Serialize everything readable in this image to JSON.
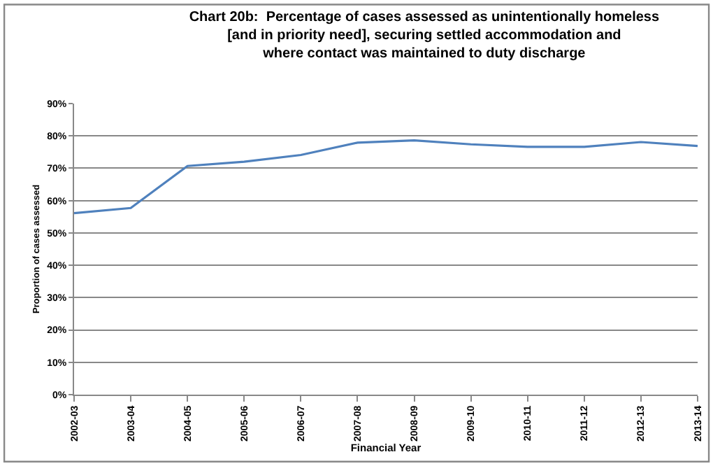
{
  "chart_data": {
    "type": "line",
    "title": "Chart 20b:  Percentage of cases assessed as unintentionally homeless\n[and in priority need], securing settled accommodation and\nwhere contact was maintained to duty discharge",
    "xlabel": "Financial Year",
    "ylabel": "Proportion of cases assessed",
    "categories": [
      "2002-03",
      "2003-04",
      "2004-05",
      "2005-06",
      "2006-07",
      "2007-08",
      "2008-09",
      "2009-10",
      "2010-11",
      "2011-12",
      "2012-13",
      "2013-14"
    ],
    "series": [
      {
        "color": "#4f81bd",
        "values": [
          56.1,
          57.7,
          70.7,
          72.0,
          74.1,
          77.9,
          78.6,
          77.4,
          76.6,
          76.6,
          78.1,
          76.9
        ]
      }
    ],
    "ylim": [
      0,
      90
    ],
    "yticks": [
      {
        "value": 0,
        "label": "0%"
      },
      {
        "value": 10,
        "label": "10%"
      },
      {
        "value": 20,
        "label": "20%"
      },
      {
        "value": 30,
        "label": "30%"
      },
      {
        "value": 40,
        "label": "40%"
      },
      {
        "value": 50,
        "label": "50%"
      },
      {
        "value": 60,
        "label": "60%"
      },
      {
        "value": 70,
        "label": "70%"
      },
      {
        "value": 80,
        "label": "80%"
      },
      {
        "value": 90,
        "label": "90%"
      }
    ],
    "grid": "y",
    "marker": "none",
    "line_style": "solid"
  }
}
